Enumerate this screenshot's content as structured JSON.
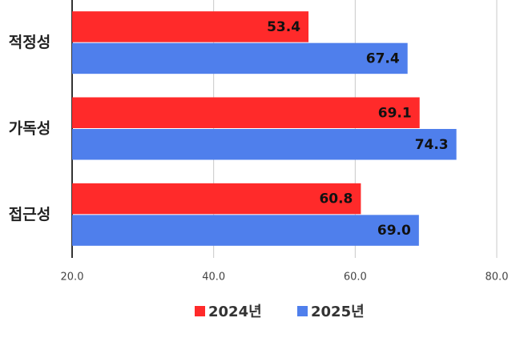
{
  "chart_data": {
    "type": "hbar",
    "categories": [
      "적정성",
      "가독성",
      "접근성"
    ],
    "series": [
      {
        "name": "2024년",
        "color": "#ff2a2a",
        "values": [
          53.4,
          69.1,
          60.8
        ],
        "value_labels": [
          "53.4",
          "69.1",
          "60.8"
        ]
      },
      {
        "name": "2025년",
        "color": "#4f7fec",
        "values": [
          67.4,
          74.3,
          69.0
        ],
        "value_labels": [
          "67.4",
          "74.3",
          "69.0"
        ]
      }
    ],
    "xlim": [
      20,
      80
    ],
    "xticks": [
      {
        "value": 20,
        "label": "20.0"
      },
      {
        "value": 40,
        "label": "40.0"
      },
      {
        "value": 60,
        "label": "60.0"
      },
      {
        "value": 80,
        "label": "80.0"
      }
    ],
    "grid": true,
    "legend": "bottom"
  }
}
